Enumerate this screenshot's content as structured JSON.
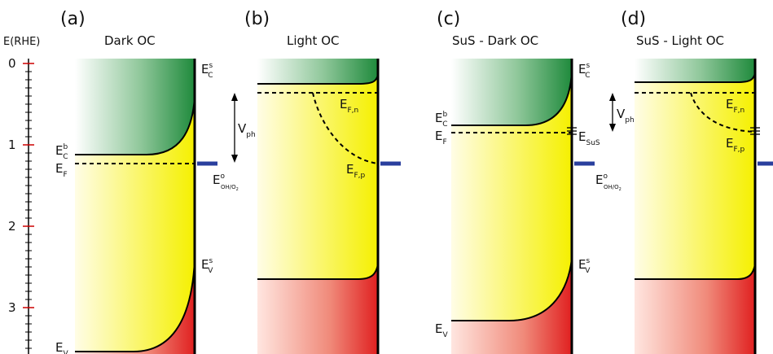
{
  "axis": {
    "label": "E(RHE)",
    "ticks": [
      {
        "value": 0,
        "label": "0"
      },
      {
        "value": 1,
        "label": "1"
      },
      {
        "value": 2,
        "label": "2"
      },
      {
        "value": 3,
        "label": "3"
      }
    ]
  },
  "panels": [
    {
      "letter": "(a)",
      "title": "Dark OC"
    },
    {
      "letter": "(b)",
      "title": "Light OC"
    },
    {
      "letter": "(c)",
      "title": "SuS - Dark OC"
    },
    {
      "letter": "(d)",
      "title": "SuS - Light OC"
    }
  ],
  "symbols": {
    "E": "E",
    "s": "s",
    "b": "b",
    "o": "o",
    "C": "C",
    "V": "V",
    "F": "F",
    "Fn": "F,n",
    "Fp": "F,p",
    "SuS": "SuS",
    "OHO2": "OH/O",
    "two": "2",
    "Vph_main": "V",
    "Vph_sub": "ph"
  },
  "colors": {
    "conduction_band": "#1f8a3c",
    "valence_band": "#e02020",
    "gap": "#f5f000",
    "redox_marker": "#2a3f9e",
    "axis_tick": "#cc0000"
  }
}
